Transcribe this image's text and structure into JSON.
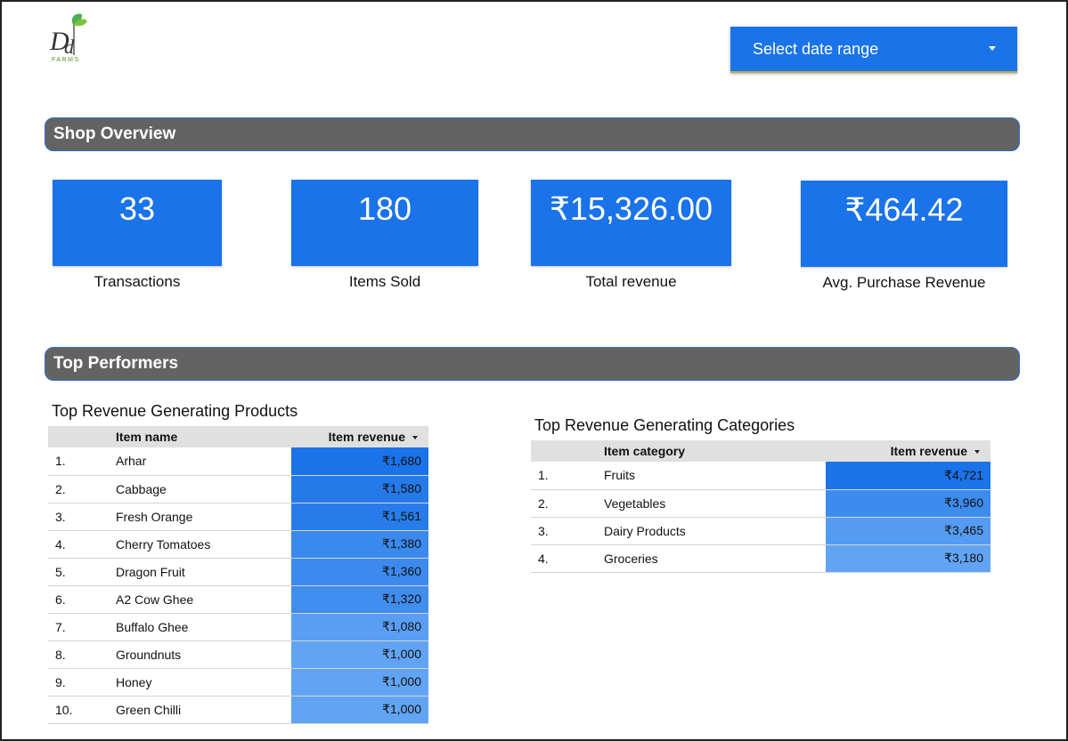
{
  "logo": {
    "brand": "Dd",
    "subtext": "FARMS"
  },
  "date_range": {
    "label": "Select date range"
  },
  "sections": {
    "overview": "Shop Overview",
    "performers": "Top Performers"
  },
  "kpis": [
    {
      "value": "33",
      "label": "Transactions"
    },
    {
      "value": "180",
      "label": "Items Sold"
    },
    {
      "value": "₹15,326.00",
      "label": "Total revenue"
    },
    {
      "value": "₹464.42",
      "label": "Avg. Purchase Revenue"
    }
  ],
  "products_table": {
    "title": "Top Revenue Generating Products",
    "columns": [
      "Item name",
      "Item revenue"
    ],
    "rows": [
      {
        "rank": "1.",
        "name": "Arhar",
        "revenue": "₹1,680",
        "heat": 1680
      },
      {
        "rank": "2.",
        "name": "Cabbage",
        "revenue": "₹1,580",
        "heat": 1580
      },
      {
        "rank": "3.",
        "name": "Fresh Orange",
        "revenue": "₹1,561",
        "heat": 1561
      },
      {
        "rank": "4.",
        "name": "Cherry Tomatoes",
        "revenue": "₹1,380",
        "heat": 1380
      },
      {
        "rank": "5.",
        "name": "Dragon Fruit",
        "revenue": "₹1,360",
        "heat": 1360
      },
      {
        "rank": "6.",
        "name": "A2 Cow Ghee",
        "revenue": "₹1,320",
        "heat": 1320
      },
      {
        "rank": "7.",
        "name": "Buffalo Ghee",
        "revenue": "₹1,080",
        "heat": 1080
      },
      {
        "rank": "8.",
        "name": "Groundnuts",
        "revenue": "₹1,000",
        "heat": 1000
      },
      {
        "rank": "9.",
        "name": "Honey",
        "revenue": "₹1,000",
        "heat": 1000
      },
      {
        "rank": "10.",
        "name": "Green Chilli",
        "revenue": "₹1,000",
        "heat": 1000
      }
    ]
  },
  "categories_table": {
    "title": "Top Revenue Generating Categories",
    "columns": [
      "Item category",
      "Item revenue"
    ],
    "rows": [
      {
        "rank": "1.",
        "name": "Fruits",
        "revenue": "₹4,721",
        "heat": 4721
      },
      {
        "rank": "2.",
        "name": "Vegetables",
        "revenue": "₹3,960",
        "heat": 3960
      },
      {
        "rank": "3.",
        "name": "Dairy Products",
        "revenue": "₹3,465",
        "heat": 3465
      },
      {
        "rank": "4.",
        "name": "Groceries",
        "revenue": "₹3,180",
        "heat": 3180
      }
    ]
  },
  "colors": {
    "accent": "#1a73e8",
    "header_bar": "#636363",
    "heat_high": "#1a73e8",
    "heat_low": "#62a4f4"
  }
}
